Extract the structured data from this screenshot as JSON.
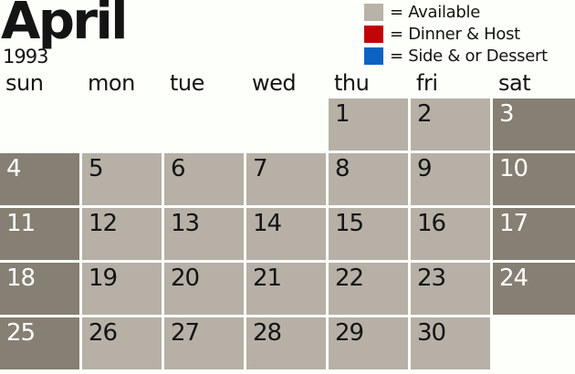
{
  "title": {
    "month": "April",
    "year": "1993"
  },
  "legend": {
    "items": [
      {
        "name": "available",
        "color": "#b9b2a8",
        "label": "= Available"
      },
      {
        "name": "dinner-host",
        "color": "#c00408",
        "label": "= Dinner & Host"
      },
      {
        "name": "side-dessert",
        "color": "#0d63c2",
        "label": "= Side & or Dessert"
      }
    ]
  },
  "weekday_headers": [
    "sun",
    "mon",
    "tue",
    "wed",
    "thu",
    "fri",
    "sat"
  ],
  "calendar": {
    "weeks": [
      [
        {
          "day": "",
          "state": "none"
        },
        {
          "day": "",
          "state": "none"
        },
        {
          "day": "",
          "state": "none"
        },
        {
          "day": "",
          "state": "none"
        },
        {
          "day": "1",
          "state": "available"
        },
        {
          "day": "2",
          "state": "available"
        },
        {
          "day": "3",
          "state": "weekend"
        }
      ],
      [
        {
          "day": "4",
          "state": "weekend"
        },
        {
          "day": "5",
          "state": "available"
        },
        {
          "day": "6",
          "state": "available"
        },
        {
          "day": "7",
          "state": "available"
        },
        {
          "day": "8",
          "state": "available"
        },
        {
          "day": "9",
          "state": "available"
        },
        {
          "day": "10",
          "state": "weekend"
        }
      ],
      [
        {
          "day": "11",
          "state": "weekend"
        },
        {
          "day": "12",
          "state": "available"
        },
        {
          "day": "13",
          "state": "available"
        },
        {
          "day": "14",
          "state": "available"
        },
        {
          "day": "15",
          "state": "available"
        },
        {
          "day": "16",
          "state": "available"
        },
        {
          "day": "17",
          "state": "weekend"
        }
      ],
      [
        {
          "day": "18",
          "state": "weekend"
        },
        {
          "day": "19",
          "state": "available"
        },
        {
          "day": "20",
          "state": "available"
        },
        {
          "day": "21",
          "state": "available"
        },
        {
          "day": "22",
          "state": "available"
        },
        {
          "day": "23",
          "state": "available"
        },
        {
          "day": "24",
          "state": "weekend"
        }
      ],
      [
        {
          "day": "25",
          "state": "weekend"
        },
        {
          "day": "26",
          "state": "available"
        },
        {
          "day": "27",
          "state": "available"
        },
        {
          "day": "28",
          "state": "available"
        },
        {
          "day": "29",
          "state": "available"
        },
        {
          "day": "30",
          "state": "available"
        },
        {
          "day": "",
          "state": "none"
        }
      ]
    ]
  },
  "colors": {
    "background": "#fcfffa",
    "text": "#141414",
    "available_cell": "#b6b0a6",
    "weekend_cell": "#867f73",
    "weekend_text": "#ffffff"
  }
}
